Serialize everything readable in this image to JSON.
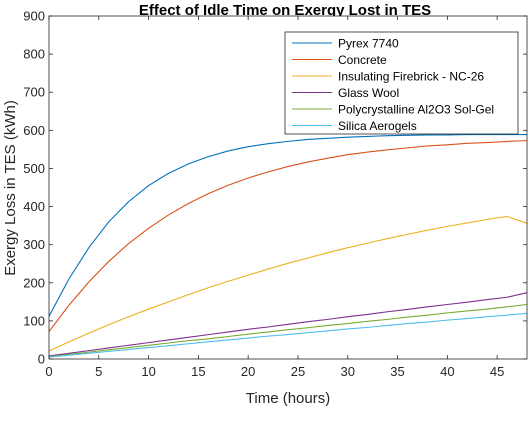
{
  "chart_data": {
    "type": "line",
    "title": "Effect of Idle Time on Exergy Lost in TES",
    "xlabel": "Time (hours)",
    "ylabel": "Exergy Loss in TES (kWh)",
    "xlim": [
      0,
      48
    ],
    "ylim": [
      0,
      900
    ],
    "xticks": [
      0,
      5,
      10,
      15,
      20,
      25,
      30,
      35,
      40,
      45
    ],
    "yticks": [
      0,
      100,
      200,
      300,
      400,
      500,
      600,
      700,
      800,
      900
    ],
    "grid": false,
    "legend_position": "top-right",
    "x": [
      0,
      2,
      4,
      6,
      8,
      10,
      12,
      14,
      16,
      18,
      20,
      22,
      24,
      26,
      28,
      30,
      32,
      34,
      36,
      38,
      40,
      42,
      44,
      46,
      48
    ],
    "series": [
      {
        "name": "Pyrex 7740",
        "color": "#0072BD",
        "values": [
          112,
          210,
          292,
          360,
          413,
          455,
          487,
          512,
          531,
          546,
          557,
          565,
          571,
          576,
          579,
          582,
          584,
          586,
          587,
          588,
          588,
          589,
          589,
          589,
          589
        ]
      },
      {
        "name": "Concrete",
        "color": "#D95319",
        "values": [
          72,
          141,
          202,
          256,
          303,
          343,
          378,
          408,
          434,
          456,
          475,
          491,
          505,
          517,
          527,
          536,
          543,
          549,
          554,
          559,
          562,
          566,
          568,
          571,
          573
        ]
      },
      {
        "name": "Insulating Firebrick - NC-26",
        "color": "#EDB120",
        "values": [
          21,
          45,
          68,
          90,
          111,
          131,
          150,
          169,
          187,
          204,
          220,
          236,
          251,
          265,
          279,
          292,
          304,
          316,
          327,
          338,
          348,
          357,
          366,
          374,
          356
        ]
      },
      {
        "name": "Glass Wool",
        "color": "#7E2F8E",
        "values": [
          8,
          15,
          22,
          29,
          36,
          43,
          50,
          57,
          64,
          71,
          78,
          84,
          91,
          98,
          104,
          111,
          117,
          124,
          130,
          137,
          143,
          149,
          156,
          162,
          174
        ]
      },
      {
        "name": "Polycrystalline Al2O3 Sol-Gel",
        "color": "#77AC30",
        "values": [
          6,
          12,
          18,
          24,
          30,
          36,
          42,
          48,
          53,
          59,
          65,
          71,
          77,
          82,
          88,
          93,
          99,
          104,
          110,
          115,
          121,
          126,
          131,
          137,
          143
        ]
      },
      {
        "name": "Silica Aerogels",
        "color": "#4DBEEE",
        "values": [
          5,
          10,
          15,
          20,
          25,
          30,
          35,
          40,
          45,
          50,
          55,
          60,
          64,
          69,
          74,
          79,
          83,
          88,
          93,
          97,
          102,
          106,
          111,
          115,
          120
        ]
      }
    ]
  }
}
